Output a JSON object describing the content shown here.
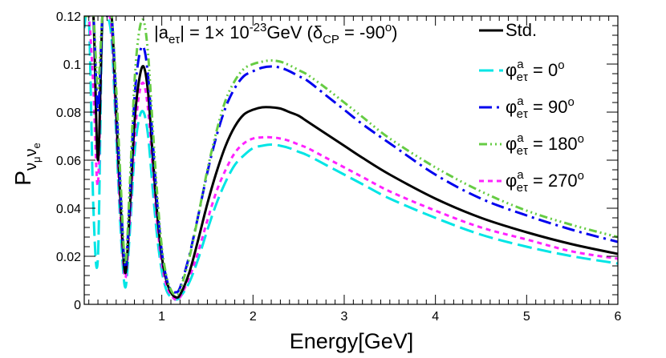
{
  "chart_data": {
    "type": "line",
    "title_parts": {
      "a_open": "|a",
      "a_sub": "eτ",
      "mid": "| = 1× 10",
      "exp": "-23",
      "unit": "GeV (δ",
      "cp_sub": "CP",
      "phase": " = -90",
      "deg": "o",
      "close": ")"
    },
    "xlabel": "Energy[GeV]",
    "ylabel_main": "P",
    "ylabel_sub": "ν",
    "ylabel_sub2": "μ",
    "ylabel_sub3": "ν",
    "ylabel_sub4": "e",
    "xlim": [
      0.15,
      6.0
    ],
    "ylim": [
      0,
      0.12
    ],
    "xticks": [
      1,
      2,
      3,
      4,
      5,
      6
    ],
    "xtick_labels": [
      "1",
      "2",
      "3",
      "4",
      "5",
      "6"
    ],
    "yticks": [
      0,
      0.02,
      0.04,
      0.06,
      0.08,
      0.1,
      0.12
    ],
    "ytick_labels": [
      "0",
      "0.02",
      "0.04",
      "0.06",
      "0.08",
      "0.1",
      "0.12"
    ],
    "series": [
      {
        "name": "Std.",
        "label_main": "Std.",
        "color": "#000000",
        "dash": "",
        "x": [
          0.15,
          0.2,
          0.25,
          0.3,
          0.35,
          0.4,
          0.45,
          0.5,
          0.55,
          0.6,
          0.65,
          0.7,
          0.75,
          0.8,
          0.85,
          0.9,
          0.95,
          1.0,
          1.05,
          1.1,
          1.15,
          1.2,
          1.3,
          1.4,
          1.5,
          1.6,
          1.7,
          1.8,
          1.9,
          2.0,
          2.1,
          2.2,
          2.3,
          2.4,
          2.5,
          2.6,
          2.8,
          3.0,
          3.2,
          3.5,
          4.0,
          4.5,
          5.0,
          5.5,
          6.0
        ],
        "y": [
          0.12,
          0.12,
          0.12,
          0.06,
          0.12,
          0.12,
          0.12,
          0.08,
          0.04,
          0.013,
          0.04,
          0.075,
          0.093,
          0.099,
          0.088,
          0.062,
          0.038,
          0.02,
          0.01,
          0.005,
          0.003,
          0.004,
          0.013,
          0.027,
          0.042,
          0.055,
          0.066,
          0.074,
          0.079,
          0.081,
          0.082,
          0.082,
          0.0815,
          0.08,
          0.0785,
          0.076,
          0.071,
          0.066,
          0.061,
          0.054,
          0.044,
          0.036,
          0.03,
          0.025,
          0.021
        ]
      },
      {
        "name": "phi 0",
        "label_main": "φ",
        "label_sup": "a",
        "label_sub": "eτ",
        "label_value": " = 0",
        "label_deg": "o",
        "color": "#00e5e5",
        "dash": "18,7",
        "x": [
          0.15,
          0.2,
          0.25,
          0.3,
          0.35,
          0.4,
          0.45,
          0.5,
          0.55,
          0.6,
          0.65,
          0.7,
          0.75,
          0.8,
          0.85,
          0.9,
          0.95,
          1.0,
          1.05,
          1.1,
          1.15,
          1.2,
          1.3,
          1.4,
          1.5,
          1.6,
          1.7,
          1.8,
          1.9,
          2.0,
          2.1,
          2.2,
          2.3,
          2.4,
          2.5,
          2.6,
          2.8,
          3.0,
          3.2,
          3.5,
          4.0,
          4.5,
          5.0,
          5.5,
          6.0
        ],
        "y": [
          0.115,
          0.12,
          0.04,
          0.02,
          0.12,
          0.12,
          0.11,
          0.07,
          0.03,
          0.007,
          0.03,
          0.062,
          0.077,
          0.08,
          0.07,
          0.048,
          0.028,
          0.014,
          0.006,
          0.003,
          0.002,
          0.003,
          0.009,
          0.019,
          0.031,
          0.042,
          0.051,
          0.058,
          0.062,
          0.065,
          0.066,
          0.0665,
          0.066,
          0.065,
          0.0635,
          0.062,
          0.058,
          0.054,
          0.05,
          0.044,
          0.036,
          0.029,
          0.024,
          0.02,
          0.017
        ]
      },
      {
        "name": "phi 90",
        "label_main": "φ",
        "label_sup": "a",
        "label_sub": "eτ",
        "label_value": " = 90",
        "label_deg": "o",
        "color": "#0000ee",
        "dash": "16,6,3,6",
        "x": [
          0.15,
          0.2,
          0.25,
          0.3,
          0.35,
          0.4,
          0.45,
          0.5,
          0.55,
          0.6,
          0.65,
          0.7,
          0.75,
          0.8,
          0.85,
          0.9,
          0.95,
          1.0,
          1.05,
          1.1,
          1.15,
          1.2,
          1.3,
          1.4,
          1.5,
          1.6,
          1.7,
          1.8,
          1.9,
          2.0,
          2.1,
          2.2,
          2.3,
          2.4,
          2.5,
          2.6,
          2.8,
          3.0,
          3.2,
          3.5,
          4.0,
          4.5,
          5.0,
          5.5,
          6.0
        ],
        "y": [
          0.12,
          0.12,
          0.12,
          0.08,
          0.12,
          0.12,
          0.12,
          0.085,
          0.045,
          0.015,
          0.045,
          0.085,
          0.103,
          0.107,
          0.095,
          0.068,
          0.042,
          0.022,
          0.011,
          0.006,
          0.005,
          0.007,
          0.02,
          0.037,
          0.055,
          0.07,
          0.082,
          0.09,
          0.095,
          0.097,
          0.0985,
          0.099,
          0.0985,
          0.097,
          0.095,
          0.093,
          0.087,
          0.081,
          0.075,
          0.067,
          0.054,
          0.044,
          0.037,
          0.031,
          0.026
        ]
      },
      {
        "name": "phi 180",
        "label_main": "φ",
        "label_sup": "a",
        "label_sub": "eτ",
        "label_value": " = 180",
        "label_deg": "o",
        "color": "#66cc44",
        "dash": "10,4,2,4,2,4,2,4",
        "x": [
          0.15,
          0.2,
          0.25,
          0.3,
          0.35,
          0.4,
          0.45,
          0.5,
          0.55,
          0.6,
          0.65,
          0.7,
          0.75,
          0.8,
          0.85,
          0.9,
          0.95,
          1.0,
          1.05,
          1.1,
          1.15,
          1.2,
          1.3,
          1.4,
          1.5,
          1.6,
          1.7,
          1.8,
          1.9,
          2.0,
          2.1,
          2.2,
          2.3,
          2.4,
          2.5,
          2.6,
          2.8,
          3.0,
          3.2,
          3.5,
          4.0,
          4.5,
          5.0,
          5.5,
          6.0
        ],
        "y": [
          0.12,
          0.12,
          0.12,
          0.09,
          0.12,
          0.12,
          0.12,
          0.09,
          0.05,
          0.017,
          0.05,
          0.092,
          0.113,
          0.118,
          0.104,
          0.074,
          0.046,
          0.024,
          0.012,
          0.006,
          0.004,
          0.006,
          0.019,
          0.037,
          0.056,
          0.072,
          0.085,
          0.093,
          0.098,
          0.1,
          0.101,
          0.1015,
          0.101,
          0.0995,
          0.0975,
          0.0955,
          0.09,
          0.084,
          0.078,
          0.069,
          0.057,
          0.047,
          0.039,
          0.033,
          0.028
        ]
      },
      {
        "name": "phi 270",
        "label_main": "φ",
        "label_sup": "a",
        "label_sub": "eτ",
        "label_value": " = 270",
        "label_deg": "o",
        "color": "#ff22ff",
        "dash": "6,5",
        "x": [
          0.15,
          0.2,
          0.25,
          0.3,
          0.35,
          0.4,
          0.45,
          0.5,
          0.55,
          0.6,
          0.65,
          0.7,
          0.75,
          0.8,
          0.85,
          0.9,
          0.95,
          1.0,
          1.05,
          1.1,
          1.15,
          1.2,
          1.3,
          1.4,
          1.5,
          1.6,
          1.7,
          1.8,
          1.9,
          2.0,
          2.1,
          2.2,
          2.3,
          2.4,
          2.5,
          2.6,
          2.8,
          3.0,
          3.2,
          3.5,
          4.0,
          4.5,
          5.0,
          5.5,
          6.0
        ],
        "y": [
          0.12,
          0.12,
          0.09,
          0.05,
          0.12,
          0.12,
          0.115,
          0.075,
          0.035,
          0.011,
          0.035,
          0.068,
          0.087,
          0.092,
          0.081,
          0.057,
          0.034,
          0.017,
          0.008,
          0.004,
          0.002,
          0.003,
          0.011,
          0.022,
          0.035,
          0.047,
          0.056,
          0.063,
          0.067,
          0.069,
          0.0695,
          0.0695,
          0.069,
          0.068,
          0.0665,
          0.065,
          0.061,
          0.057,
          0.053,
          0.047,
          0.039,
          0.032,
          0.027,
          0.022,
          0.019
        ]
      }
    ]
  }
}
